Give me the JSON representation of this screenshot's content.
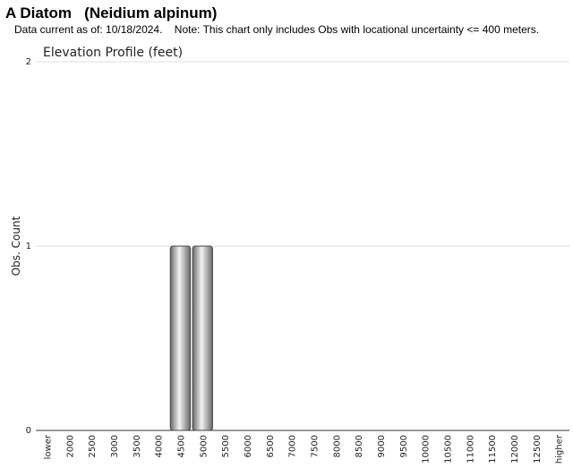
{
  "chart_data": {
    "type": "bar",
    "title": "A Diatom   (Neidium alpinum)",
    "subtitle": "Data current as of: 10/18/2024.    Note: This chart only includes Obs with locational uncertainty <= 400 meters.",
    "chart_title": "Elevation Profile (feet)",
    "y_label": "Obs. Count",
    "categories": [
      "lower",
      "2000",
      "2500",
      "3000",
      "3500",
      "4000",
      "4500",
      "5000",
      "5500",
      "6000",
      "6500",
      "7000",
      "7500",
      "8000",
      "8500",
      "9000",
      "9500",
      "10000",
      "10500",
      "11000",
      "11500",
      "12000",
      "12500",
      "higher"
    ],
    "values": [
      0,
      0,
      0,
      0,
      0,
      0,
      1,
      1,
      0,
      0,
      0,
      0,
      0,
      0,
      0,
      0,
      0,
      0,
      0,
      0,
      0,
      0,
      0,
      0
    ],
    "color": "#9a9a9a",
    "ylim": [
      0,
      2
    ],
    "yticks": [
      0,
      1,
      2
    ],
    "grid": true
  }
}
